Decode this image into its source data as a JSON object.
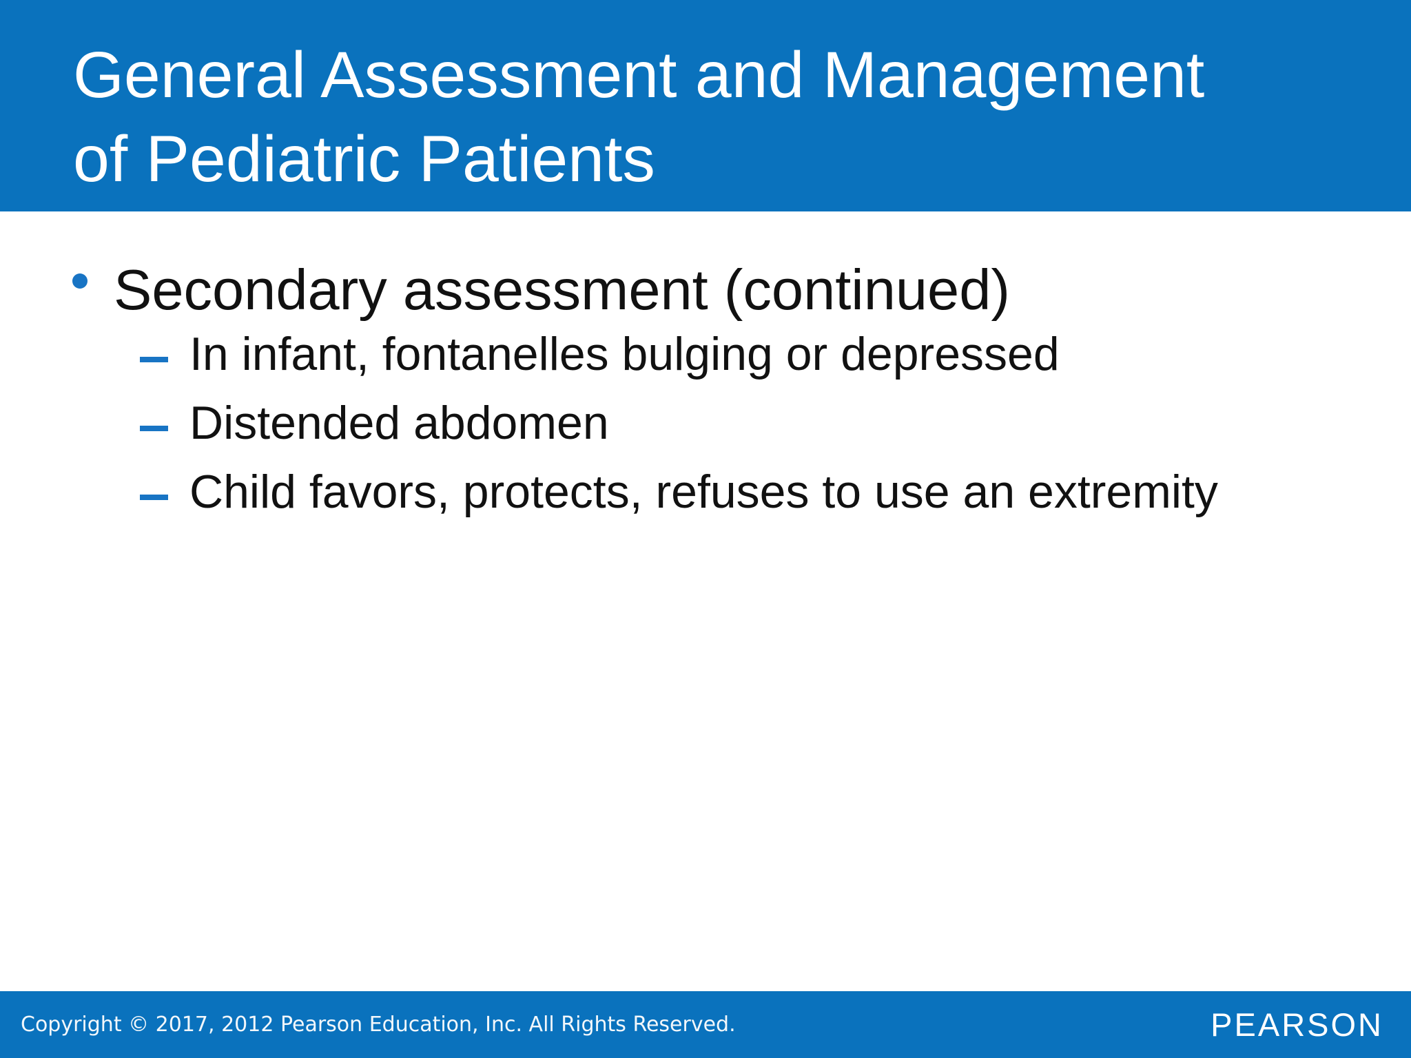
{
  "header": {
    "title_line1": "General Assessment and Management",
    "title_line2": "of Pediatric Patients"
  },
  "content": {
    "bullet": {
      "label": "Secondary assessment (continued)"
    },
    "sub_bullets": [
      {
        "label": "In infant, fontanelles bulging or depressed"
      },
      {
        "label": "Distended abdomen"
      },
      {
        "label": "Child favors, protects, refuses to use an extremity"
      }
    ]
  },
  "footer": {
    "copyright": "Copyright © 2017, 2012 Pearson Education, Inc. All Rights Reserved.",
    "brand_logo": "PEARSON"
  },
  "colors": {
    "bar_blue": "#0A72BD",
    "bullet_blue": "#1874C4",
    "text_black": "#111111",
    "title_white": "#FFFFFF"
  }
}
